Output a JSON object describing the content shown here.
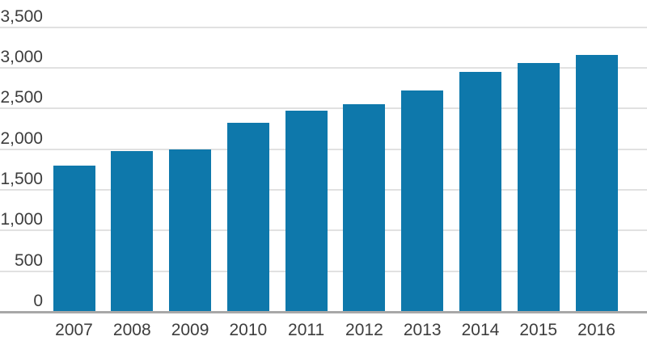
{
  "chart_data": {
    "type": "bar",
    "title": "",
    "xlabel": "",
    "ylabel": "",
    "categories": [
      "2007",
      "2008",
      "2009",
      "2010",
      "2011",
      "2012",
      "2013",
      "2014",
      "2015",
      "2016"
    ],
    "values": [
      1800,
      1975,
      1995,
      2325,
      2470,
      2550,
      2720,
      2950,
      3060,
      3155
    ],
    "ylim": [
      0,
      3500
    ],
    "y_tick_interval": 500,
    "y_ticks": [
      {
        "label": "3,500",
        "value": 3500
      },
      {
        "label": "3,000",
        "value": 3000
      },
      {
        "label": "2,500",
        "value": 2500
      },
      {
        "label": "2,000",
        "value": 2000
      },
      {
        "label": "1,500",
        "value": 1500
      },
      {
        "label": "1,000",
        "value": 1000
      },
      {
        "label": "500",
        "value": 500
      },
      {
        "label": "0",
        "value": 0
      }
    ],
    "grid": "horizontal",
    "legend": "none"
  },
  "colors": {
    "bar": "#0e78ab",
    "gridline": "#e1e1e1",
    "axis_line": "#a8a8a8",
    "label_text": "#3d3d3d",
    "background": "#ffffff"
  }
}
